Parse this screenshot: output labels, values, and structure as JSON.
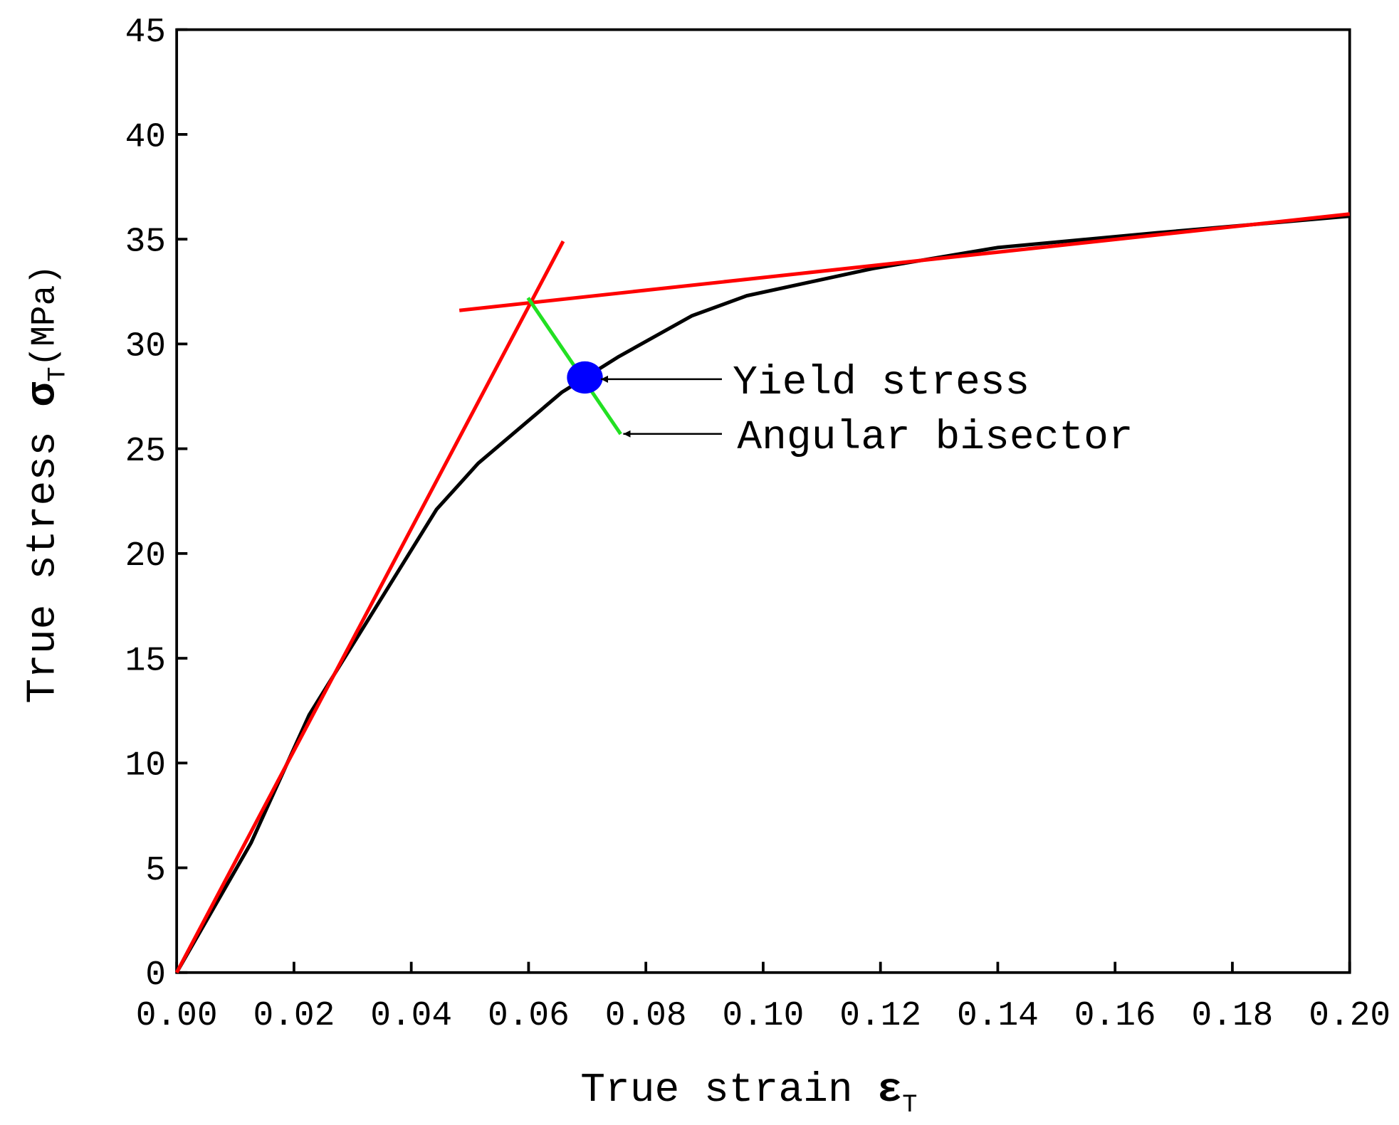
{
  "chart_data": {
    "type": "line",
    "x_label": {
      "text": "True strain ",
      "symbol": "ε",
      "subscript": "T"
    },
    "y_label": {
      "text": "True stress ",
      "symbol": "σ",
      "subscript": "T",
      "unit": "(MPa)"
    },
    "xlim": [
      0,
      0.2
    ],
    "ylim": [
      0,
      45
    ],
    "xticks": [
      {
        "value": 0,
        "label": "0.00"
      },
      {
        "value": 0.02,
        "label": "0.02"
      },
      {
        "value": 0.04,
        "label": "0.04"
      },
      {
        "value": 0.06,
        "label": "0.06"
      },
      {
        "value": 0.08,
        "label": "0.08"
      },
      {
        "value": 0.1,
        "label": "0.10"
      },
      {
        "value": 0.12,
        "label": "0.12"
      },
      {
        "value": 0.14,
        "label": "0.14"
      },
      {
        "value": 0.16,
        "label": "0.16"
      },
      {
        "value": 0.18,
        "label": "0.18"
      },
      {
        "value": 0.2,
        "label": "0.20"
      }
    ],
    "yticks": [
      0,
      5,
      10,
      15,
      20,
      25,
      30,
      35,
      40,
      45
    ],
    "grid": false,
    "series": [
      {
        "color": "#000000",
        "x": [
          0,
          0.0127,
          0.0226,
          0.0443,
          0.0514,
          0.0657,
          0.0754,
          0.0879,
          0.0972,
          0.1187,
          0.14,
          0.167,
          0.2
        ],
        "values": [
          0,
          6.2,
          12.3,
          22.1,
          24.3,
          27.7,
          29.4,
          31.35,
          32.3,
          33.6,
          34.6,
          35.3,
          36.1
        ]
      },
      {
        "color": "#ff0000",
        "x": [
          0,
          0.0659
        ],
        "values": [
          0,
          34.9
        ]
      },
      {
        "color": "#ff0000",
        "x": [
          0.0482,
          0.2
        ],
        "values": [
          31.6,
          36.2
        ]
      },
      {
        "color": "#22e022",
        "x": [
          0.0599,
          0.0757
        ],
        "values": [
          32.2,
          25.7
        ]
      },
      {
        "color": "#0000ff",
        "mode": "marker",
        "x": [
          0.0696
        ],
        "values": [
          28.4
        ]
      }
    ],
    "annotations": [
      {
        "text": "Yield stress"
      },
      {
        "text": "Angular bisector"
      }
    ]
  }
}
